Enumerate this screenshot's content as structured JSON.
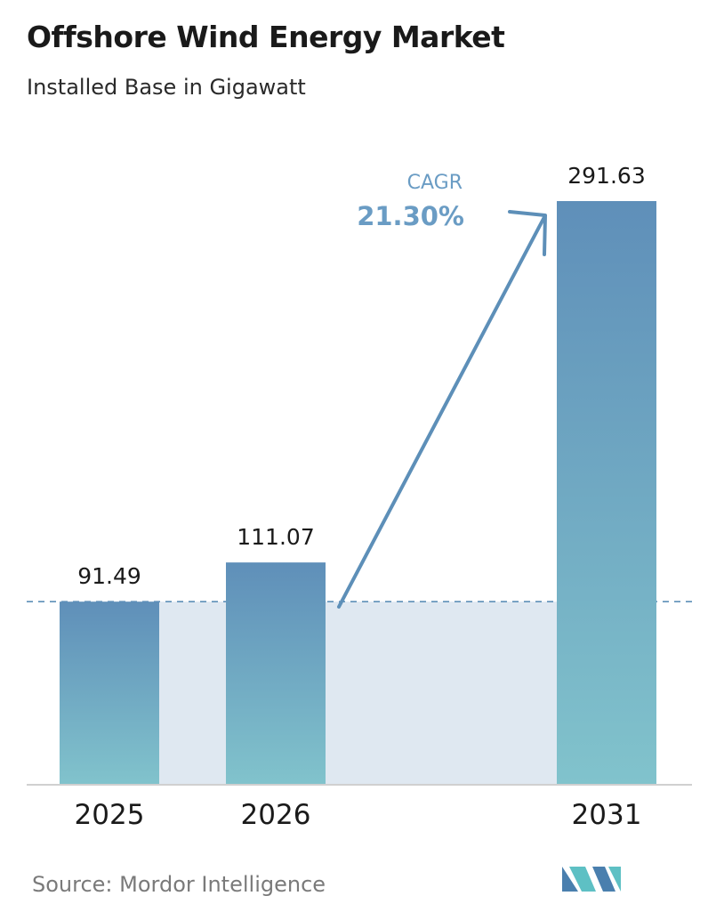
{
  "header": {
    "title": "Offshore Wind Energy Market",
    "subtitle": "Installed Base in Gigawatt"
  },
  "chart_data": {
    "type": "bar",
    "categories": [
      "2025",
      "2026",
      "2031"
    ],
    "values": [
      91.49,
      111.07,
      291.63
    ],
    "value_labels": [
      "91.49",
      "111.07",
      "291.63"
    ],
    "title": "Offshore Wind Energy Market",
    "subtitle": "Installed Base in Gigawatt",
    "xlabel": "",
    "ylabel": "",
    "grid": false,
    "annotation": {
      "label": "CAGR",
      "value": "21.30%"
    },
    "colors": {
      "bar_top": "#5f8fb9",
      "bar_bottom": "#81c3cc",
      "baseline_band": "#dfe8f1",
      "annotation": "#6a9cc4",
      "arrow": "#5d8fb8",
      "axis": "#d0d0d0"
    }
  },
  "footer": {
    "source": "Source:  Mordor Intelligence",
    "logo_icon": "mordor-intelligence-logo-icon",
    "logo_colors": [
      "#4a7fae",
      "#5ec0c4"
    ]
  }
}
